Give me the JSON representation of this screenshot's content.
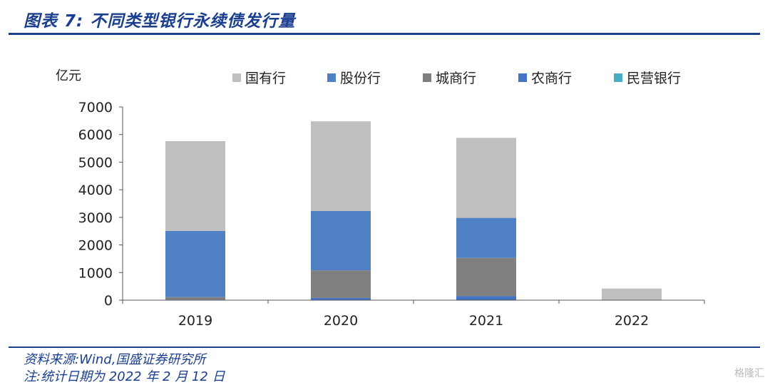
{
  "header": {
    "title": "图表 7:  不同类型银行永续债发行量"
  },
  "footer": {
    "source": "资料来源:Wind,国盛证券研究所",
    "note": "注:统计日期为 2022 年 2 月 12 日"
  },
  "watermark": "格隆汇",
  "chart_data": {
    "type": "bar",
    "stacked": true,
    "title": "",
    "ylabel": "亿元",
    "xlabel": "",
    "ylim": [
      0,
      7000
    ],
    "yticks": [
      0,
      1000,
      2000,
      3000,
      4000,
      5000,
      6000,
      7000
    ],
    "categories": [
      "2019",
      "2020",
      "2021",
      "2022"
    ],
    "legend_position": "top",
    "series": [
      {
        "name": "国有行",
        "color": "#bfbfbf",
        "values": [
          3250,
          3250,
          2900,
          400
        ]
      },
      {
        "name": "股份行",
        "color": "#4f81c4",
        "values": [
          2400,
          2150,
          1450,
          0
        ]
      },
      {
        "name": "城商行",
        "color": "#7f7f7f",
        "values": [
          90,
          1000,
          1380,
          20
        ]
      },
      {
        "name": "农商行",
        "color": "#4472c4",
        "values": [
          20,
          80,
          150,
          0
        ]
      },
      {
        "name": "民营银行",
        "color": "#4bacc6",
        "values": [
          0,
          0,
          0,
          0
        ]
      }
    ]
  }
}
